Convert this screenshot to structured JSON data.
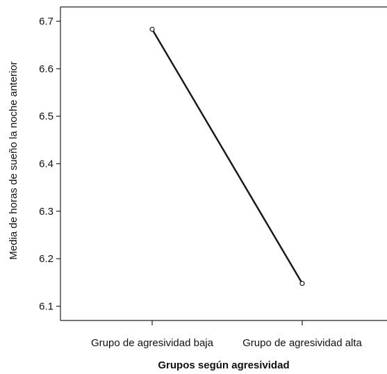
{
  "chart_data": {
    "type": "line",
    "categories": [
      "Grupo de agresividad baja",
      "Grupo de agresividad alta"
    ],
    "series": [
      {
        "values": [
          6.683,
          6.148
        ]
      }
    ],
    "xlabel": "Grupos según agresividad",
    "ylabel": "Media de horas de sueño la noche anterior",
    "ylim": [
      6.07,
      6.73
    ],
    "yticks": [
      6.1,
      6.2,
      6.3,
      6.4,
      6.5,
      6.6,
      6.7
    ],
    "grid": false,
    "colors": {
      "line": "#1a1a1a",
      "axis": "#222222"
    }
  }
}
